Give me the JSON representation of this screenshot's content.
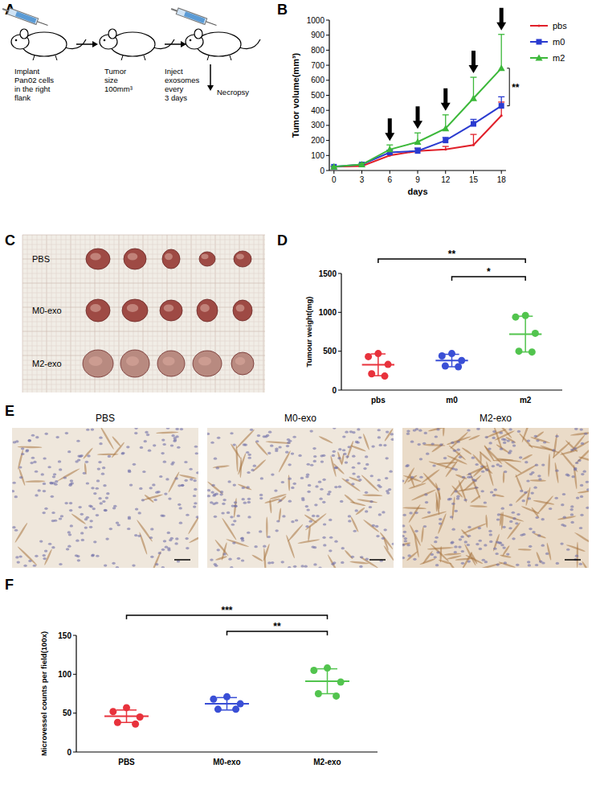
{
  "panel_labels": [
    "A",
    "B",
    "C",
    "D",
    "E",
    "F"
  ],
  "diagram": {
    "steps": [
      {
        "lines": [
          "Implant",
          "Pan02 cells",
          "in the right",
          "flank"
        ]
      },
      {
        "lines": [
          "Tumor",
          "size",
          "100mm³"
        ]
      },
      {
        "lines": [
          "Inject",
          "exosomes",
          "every",
          "3 days"
        ]
      },
      {
        "lines": [
          "Necropsy"
        ]
      }
    ]
  },
  "photo": {
    "rows": [
      "PBS",
      "M0-exo",
      "M2-exo"
    ]
  },
  "ihc": {
    "titles": [
      "PBS",
      "M0-exo",
      "M2-exo"
    ]
  },
  "chart_data": [
    {
      "type": "line",
      "y_label": "Tumor volume(mm³)",
      "x_label": "days",
      "x": [
        0,
        3,
        6,
        9,
        12,
        15,
        18
      ],
      "xlim": [
        -0.5,
        18.5
      ],
      "xticks": [
        0,
        3,
        6,
        9,
        12,
        15,
        18
      ],
      "ylim": [
        0,
        1000
      ],
      "yticks": [
        0,
        100,
        200,
        300,
        400,
        500,
        600,
        700,
        800,
        900,
        1000
      ],
      "legend": "right",
      "series": [
        {
          "name": "pbs",
          "color": "#e0202a",
          "marker": "none",
          "values": [
            25,
            30,
            100,
            130,
            140,
            170,
            365
          ],
          "errors": [
            3,
            5,
            10,
            15,
            20,
            70,
            90
          ]
        },
        {
          "name": "m0",
          "color": "#2a3bd0",
          "marker": "square",
          "values": [
            25,
            40,
            120,
            130,
            200,
            310,
            430
          ],
          "errors": [
            3,
            5,
            15,
            20,
            20,
            30,
            60
          ]
        },
        {
          "name": "m2",
          "color": "#3cb83a",
          "marker": "triangle",
          "values": [
            25,
            40,
            140,
            190,
            280,
            480,
            680
          ],
          "errors": [
            3,
            10,
            30,
            60,
            90,
            140,
            225
          ]
        }
      ],
      "arrows_x": [
        6,
        9,
        12,
        15,
        18
      ],
      "annotations": [
        {
          "text": "**",
          "x": 18,
          "between": [
            1,
            2
          ]
        }
      ]
    },
    {
      "type": "dot",
      "y_label": "Tumour weight(mg)",
      "categories": [
        "pbs",
        "m0",
        "m2"
      ],
      "colors": [
        "#e8323c",
        "#3a4fd6",
        "#52c44e"
      ],
      "points": [
        [
          470,
          430,
          330,
          210,
          180
        ],
        [
          470,
          440,
          380,
          310,
          300
        ],
        [
          960,
          940,
          730,
          500,
          490
        ]
      ],
      "means": [
        325,
        380,
        720
      ],
      "sd": [
        140,
        80,
        230
      ],
      "ylim": [
        0,
        1500
      ],
      "yticks": [
        0,
        500,
        1000,
        1500
      ],
      "annotations": [
        {
          "text": "**",
          "between": [
            0,
            2
          ]
        },
        {
          "text": "*",
          "between": [
            1,
            2
          ]
        }
      ]
    },
    {
      "type": "dot",
      "y_label": "Microvessel counts per field(100x)",
      "categories": [
        "PBS",
        "M0-exo",
        "M2-exo"
      ],
      "colors": [
        "#e8323c",
        "#3a4fd6",
        "#52c44e"
      ],
      "points": [
        [
          57,
          52,
          45,
          38,
          36
        ],
        [
          71,
          68,
          62,
          55,
          55
        ],
        [
          108,
          105,
          90,
          75,
          72
        ]
      ],
      "means": [
        46,
        62,
        91
      ],
      "sd": [
        8,
        8,
        16
      ],
      "ylim": [
        0,
        150
      ],
      "yticks": [
        0,
        50,
        100,
        150
      ],
      "annotations": [
        {
          "text": "***",
          "between": [
            0,
            2
          ]
        },
        {
          "text": "**",
          "between": [
            1,
            2
          ]
        }
      ]
    }
  ]
}
